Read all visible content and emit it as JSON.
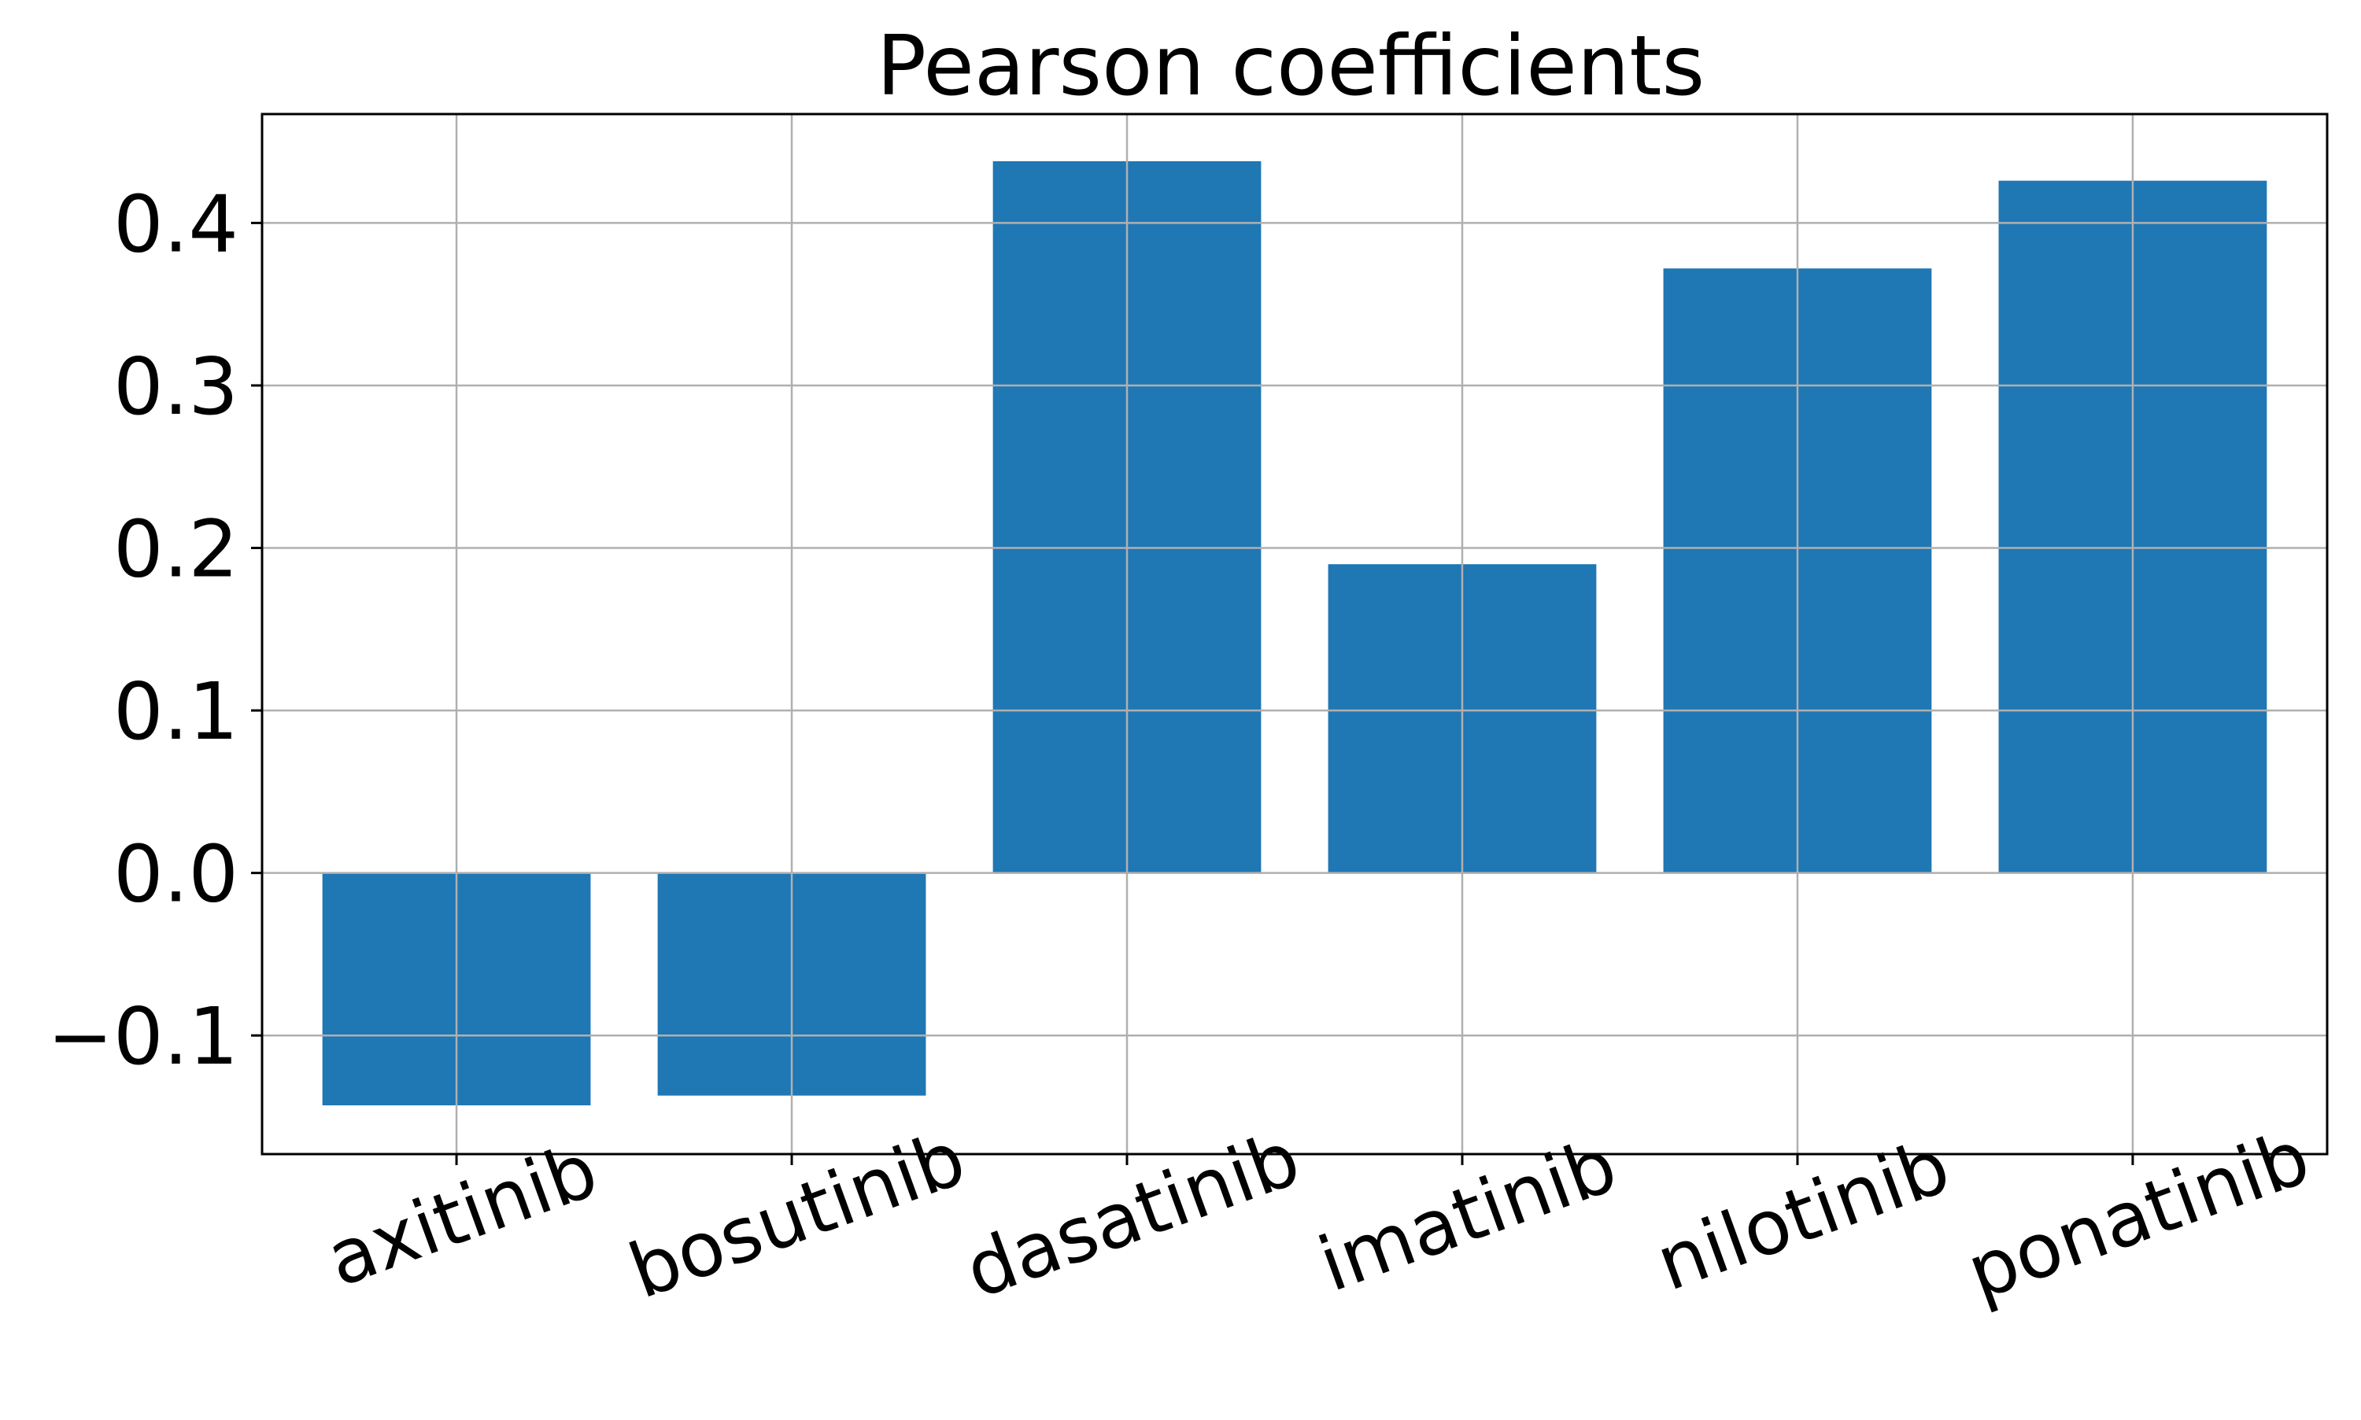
{
  "chart_data": {
    "type": "bar",
    "title": "Pearson coefficients",
    "xlabel": "",
    "ylabel": "",
    "categories": [
      "axitinib",
      "bosutinib",
      "dasatinib",
      "imatinib",
      "nilotinib",
      "ponatinib"
    ],
    "values": [
      -0.143,
      -0.137,
      0.438,
      0.19,
      0.372,
      0.426
    ],
    "ylim": [
      -0.173,
      0.467
    ],
    "yticks": [
      -0.1,
      0.0,
      0.1,
      0.2,
      0.3,
      0.4
    ],
    "ytick_labels": [
      "−0.1",
      "0.0",
      "0.1",
      "0.2",
      "0.3",
      "0.4"
    ],
    "grid": true,
    "legend": "none",
    "bar_color": "#1f77b4",
    "grid_color": "#b0b0b0",
    "xtick_rotation_deg": -20
  }
}
